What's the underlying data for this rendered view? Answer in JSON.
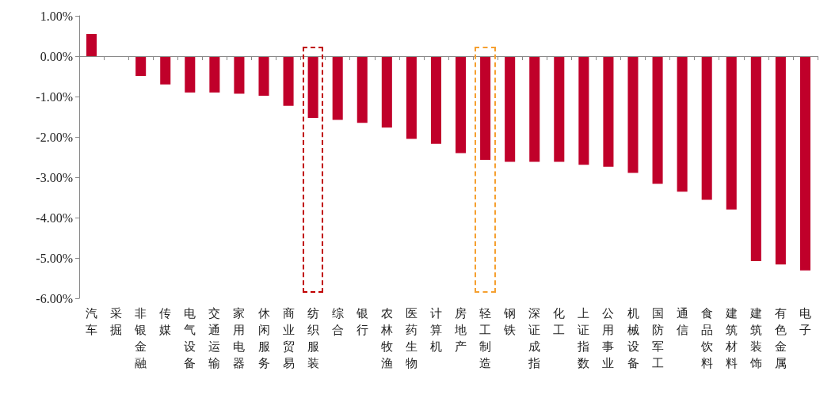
{
  "chart_data": {
    "type": "bar",
    "categories": [
      "汽车",
      "采掘",
      "非银金融",
      "传媒",
      "电气设备",
      "交通运输",
      "家用电器",
      "休闲服务",
      "商业贸易",
      "纺织服装",
      "综合",
      "银行",
      "农林牧渔",
      "医药生物",
      "计算机",
      "房地产",
      "轻工制造",
      "钢铁",
      "深证成指",
      "化工",
      "上证指数",
      "公用事业",
      "机械设备",
      "国防军工",
      "通信",
      "食品饮料",
      "建筑材料",
      "建筑装饰",
      "有色金属",
      "电子"
    ],
    "values": [
      0.55,
      0,
      -0.49,
      -0.7,
      -0.9,
      -0.9,
      -0.93,
      -0.98,
      -1.23,
      -1.53,
      -1.58,
      -1.65,
      -1.77,
      -2.05,
      -2.17,
      -2.4,
      -2.57,
      -2.62,
      -2.62,
      -2.62,
      -2.69,
      -2.74,
      -2.89,
      -3.16,
      -3.36,
      -3.56,
      -3.8,
      -5.08,
      -5.16,
      -5.31
    ],
    "color": "#c0002a",
    "ylim": [
      -6,
      1
    ],
    "yticks": [
      {
        "value": 1,
        "label": "1.00%"
      },
      {
        "value": 0,
        "label": "0.00%"
      },
      {
        "value": -1,
        "label": "-1.00%"
      },
      {
        "value": -2,
        "label": "-2.00%"
      },
      {
        "value": -3,
        "label": "-3.00%"
      },
      {
        "value": -4,
        "label": "-4.00%"
      },
      {
        "value": -5,
        "label": "-5.00%"
      },
      {
        "value": -6,
        "label": "-6.00%"
      }
    ],
    "ref_lines": [
      {
        "axis": "y",
        "value": 0,
        "color": "#888888"
      }
    ]
  }
}
